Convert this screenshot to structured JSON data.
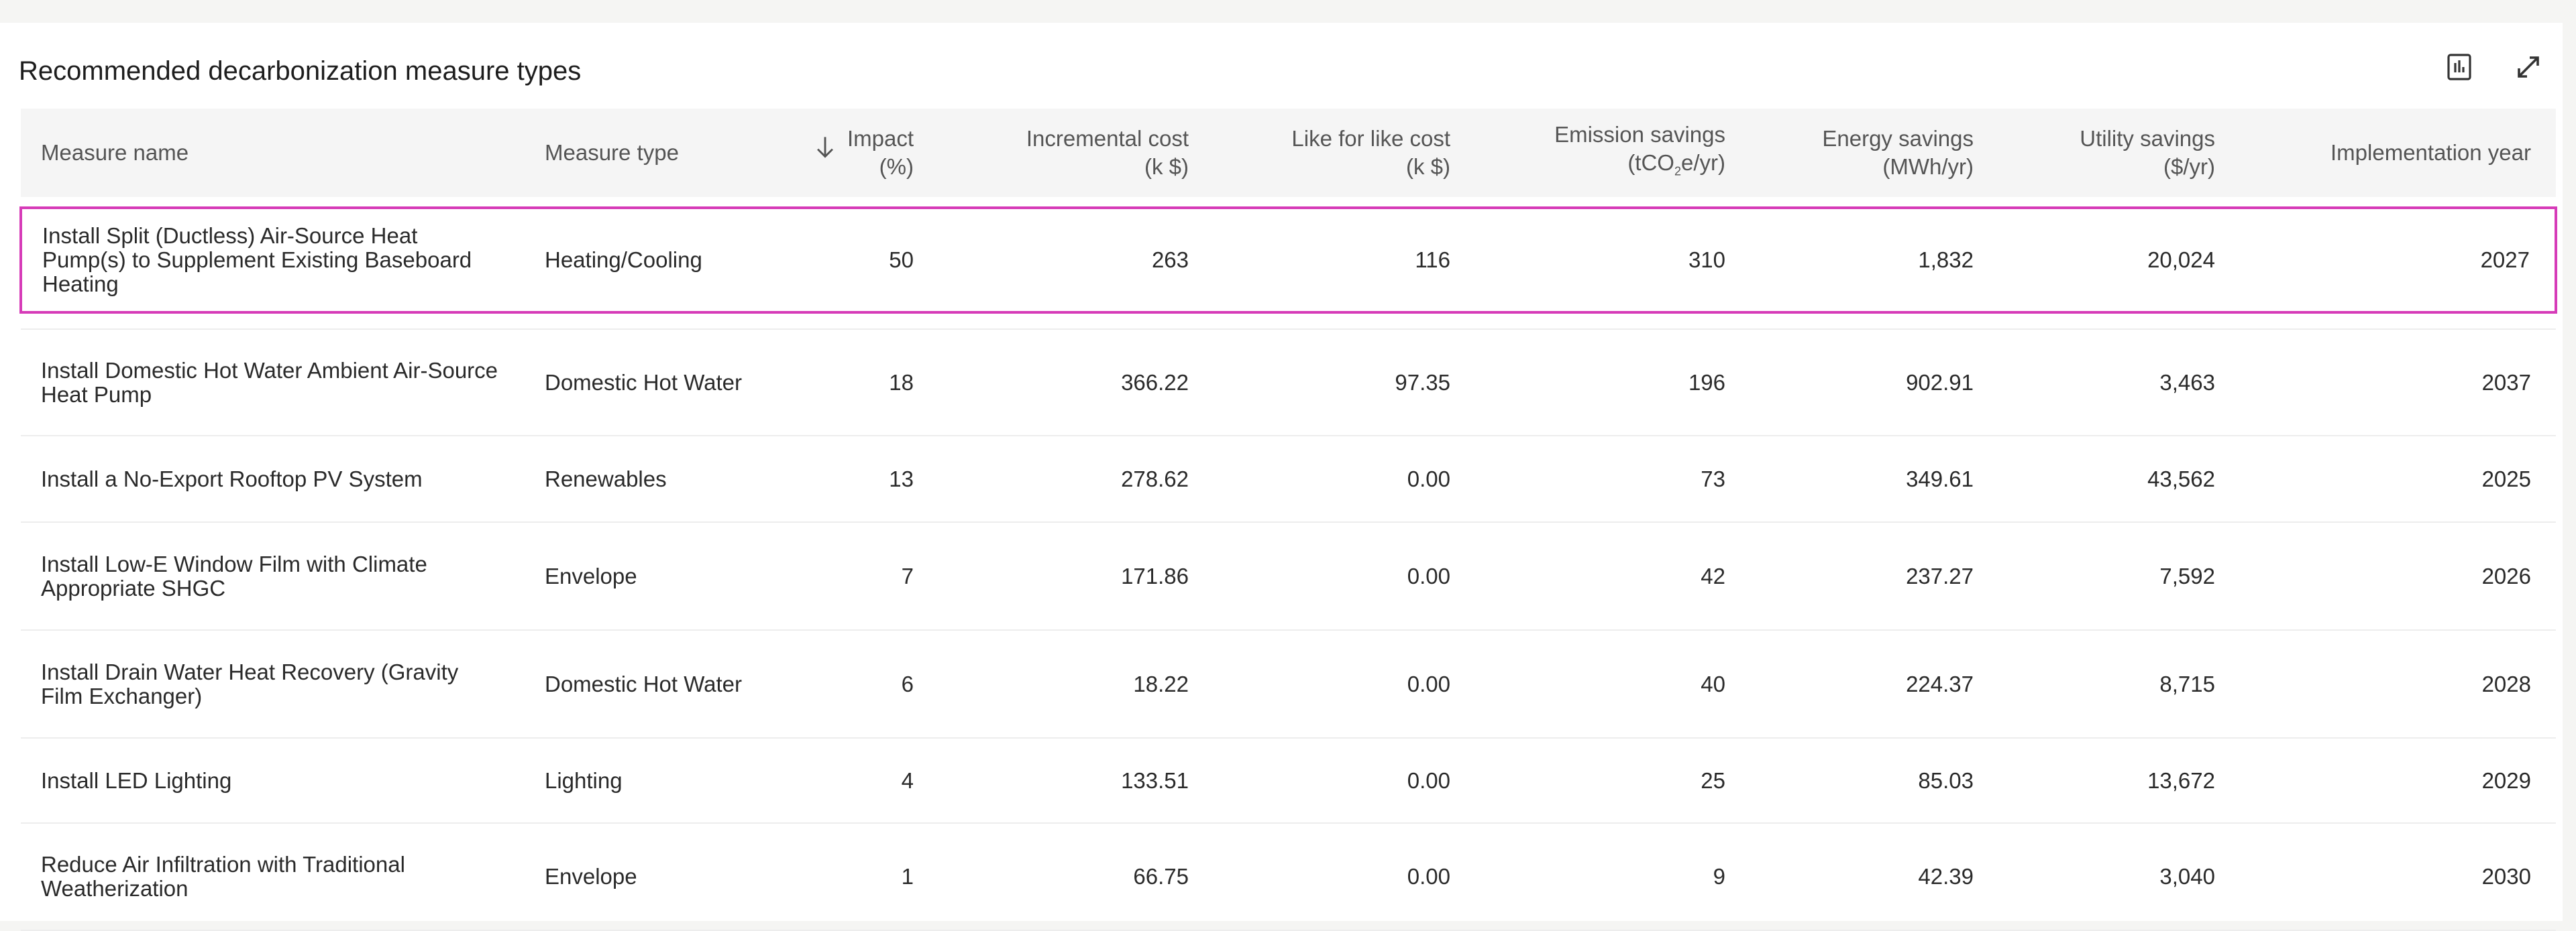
{
  "title": "Recommended decarbonization measure types",
  "icons": {
    "chart": "bar-chart-icon",
    "expand": "expand-icon",
    "sort": "arrow-down-icon"
  },
  "colors": {
    "selected_border": "#d63bb8",
    "header_bg": "#f5f5f5"
  },
  "columns": {
    "name": "Measure name",
    "type": "Measure type",
    "impact_1": "Impact",
    "impact_2": "(%)",
    "incr_1": "Incremental cost",
    "incr_2": "(k $)",
    "like_1": "Like for like cost",
    "like_2": "(k $)",
    "emis_1": "Emission savings",
    "emis_2a": "(tCO",
    "emis_sub": "2",
    "emis_2b": "e/yr)",
    "energy_1": "Energy savings",
    "energy_2": "(MWh/yr)",
    "util_1": "Utility savings",
    "util_2": "($/yr)",
    "year": "Implementation year"
  },
  "rows": [
    {
      "name": "Install Split (Ductless) Air-Source Heat Pump(s) to Supplement Existing Baseboard Heating",
      "type": "Heating/Cooling",
      "impact": "50",
      "incr": "263",
      "like": "116",
      "emis": "310",
      "energy": "1,832",
      "util": "20,024",
      "year": "2027"
    },
    {
      "name": "Install Domestic Hot Water Ambient Air-Source Heat Pump",
      "type": "Domestic Hot Water",
      "impact": "18",
      "incr": "366.22",
      "like": "97.35",
      "emis": "196",
      "energy": "902.91",
      "util": "3,463",
      "year": "2037"
    },
    {
      "name": "Install a No-Export Rooftop PV System",
      "type": "Renewables",
      "impact": "13",
      "incr": "278.62",
      "like": "0.00",
      "emis": "73",
      "energy": "349.61",
      "util": "43,562",
      "year": "2025"
    },
    {
      "name": "Install Low-E Window Film with Climate Appropriate SHGC",
      "type": "Envelope",
      "impact": "7",
      "incr": "171.86",
      "like": "0.00",
      "emis": "42",
      "energy": "237.27",
      "util": "7,592",
      "year": "2026"
    },
    {
      "name": "Install Drain Water Heat Recovery (Gravity Film Exchanger)",
      "type": "Domestic Hot Water",
      "impact": "6",
      "incr": "18.22",
      "like": "0.00",
      "emis": "40",
      "energy": "224.37",
      "util": "8,715",
      "year": "2028"
    },
    {
      "name": "Install LED Lighting",
      "type": "Lighting",
      "impact": "4",
      "incr": "133.51",
      "like": "0.00",
      "emis": "25",
      "energy": "85.03",
      "util": "13,672",
      "year": "2029"
    },
    {
      "name": "Reduce Air Infiltration with Traditional Weatherization",
      "type": "Envelope",
      "impact": "1",
      "incr": "66.75",
      "like": "0.00",
      "emis": "9",
      "energy": "42.39",
      "util": "3,040",
      "year": "2030"
    }
  ]
}
